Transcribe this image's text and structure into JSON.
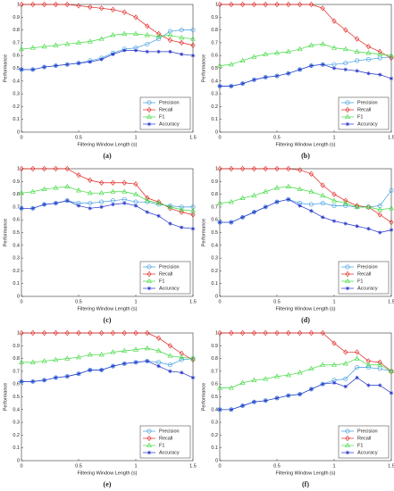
{
  "chart_data": [
    {
      "type": "line",
      "caption": "(a)",
      "xlabel": "Filtering Window Length (s)",
      "ylabel": "Performance",
      "x": [
        0,
        0.1,
        0.2,
        0.3,
        0.4,
        0.5,
        0.6,
        0.7,
        0.8,
        0.9,
        1,
        1.1,
        1.2,
        1.3,
        1.4,
        1.5
      ],
      "xlim": [
        0,
        1.5
      ],
      "ylim": [
        0,
        1
      ],
      "xticks": [
        0,
        0.5,
        1,
        1.5
      ],
      "yticks": [
        0,
        0.1,
        0.2,
        0.3,
        0.4,
        0.5,
        0.6,
        0.7,
        0.8,
        0.9,
        1
      ],
      "legend": "lower right",
      "series": [
        {
          "name": "Precision",
          "color": "#3d9be0",
          "marker": "circle",
          "values": [
            0.49,
            0.49,
            0.51,
            0.52,
            0.53,
            0.54,
            0.56,
            0.58,
            0.62,
            0.65,
            0.66,
            0.69,
            0.73,
            0.79,
            0.8,
            0.8
          ]
        },
        {
          "name": "Recall",
          "color": "#e0231f",
          "marker": "diamond",
          "values": [
            1,
            1,
            1,
            1,
            1,
            0.99,
            0.98,
            0.97,
            0.96,
            0.94,
            0.9,
            0.83,
            0.77,
            0.72,
            0.7,
            0.68
          ]
        },
        {
          "name": "F1",
          "color": "#3fd93f",
          "marker": "triangle",
          "values": [
            0.65,
            0.66,
            0.67,
            0.68,
            0.69,
            0.7,
            0.71,
            0.73,
            0.76,
            0.77,
            0.77,
            0.76,
            0.75,
            0.76,
            0.74,
            0.73
          ]
        },
        {
          "name": "Accuracy",
          "color": "#2233c8",
          "marker": "star",
          "values": [
            0.49,
            0.49,
            0.51,
            0.52,
            0.53,
            0.54,
            0.55,
            0.57,
            0.61,
            0.64,
            0.64,
            0.63,
            0.63,
            0.63,
            0.61,
            0.6
          ]
        }
      ]
    },
    {
      "type": "line",
      "caption": "(b)",
      "xlabel": "Filtering Window Length (s)",
      "ylabel": "Performance",
      "x": [
        0,
        0.1,
        0.2,
        0.3,
        0.4,
        0.5,
        0.6,
        0.7,
        0.8,
        0.9,
        1,
        1.1,
        1.2,
        1.3,
        1.4,
        1.5
      ],
      "xlim": [
        0,
        1.5
      ],
      "ylim": [
        0,
        1
      ],
      "xticks": [
        0,
        0.5,
        1,
        1.5
      ],
      "yticks": [
        0,
        0.1,
        0.2,
        0.3,
        0.4,
        0.5,
        0.6,
        0.7,
        0.8,
        0.9,
        1
      ],
      "legend": "lower right",
      "series": [
        {
          "name": "Precision",
          "color": "#3d9be0",
          "marker": "circle",
          "values": [
            0.36,
            0.36,
            0.38,
            0.41,
            0.43,
            0.44,
            0.46,
            0.49,
            0.52,
            0.53,
            0.53,
            0.54,
            0.56,
            0.57,
            0.58,
            0.59
          ]
        },
        {
          "name": "Recall",
          "color": "#e0231f",
          "marker": "diamond",
          "values": [
            1,
            1,
            1,
            1,
            1,
            1,
            1,
            1,
            1,
            0.97,
            0.87,
            0.8,
            0.73,
            0.67,
            0.63,
            0.58
          ]
        },
        {
          "name": "F1",
          "color": "#3fd93f",
          "marker": "triangle",
          "values": [
            0.52,
            0.53,
            0.56,
            0.59,
            0.61,
            0.62,
            0.63,
            0.65,
            0.68,
            0.69,
            0.66,
            0.65,
            0.63,
            0.62,
            0.61,
            0.6
          ]
        },
        {
          "name": "Accuracy",
          "color": "#2233c8",
          "marker": "star",
          "values": [
            0.36,
            0.36,
            0.38,
            0.41,
            0.43,
            0.44,
            0.46,
            0.49,
            0.52,
            0.53,
            0.5,
            0.49,
            0.48,
            0.46,
            0.45,
            0.42
          ]
        }
      ]
    },
    {
      "type": "line",
      "caption": "(c)",
      "xlabel": "Filtering Window Length (s)",
      "ylabel": "Performance",
      "x": [
        0,
        0.1,
        0.2,
        0.3,
        0.4,
        0.5,
        0.6,
        0.7,
        0.8,
        0.9,
        1,
        1.1,
        1.2,
        1.3,
        1.4,
        1.5
      ],
      "xlim": [
        0,
        1.5
      ],
      "ylim": [
        0,
        1
      ],
      "xticks": [
        0,
        0.5,
        1,
        1.5
      ],
      "yticks": [
        0,
        0.1,
        0.2,
        0.3,
        0.4,
        0.5,
        0.6,
        0.7,
        0.8,
        0.9,
        1
      ],
      "legend": "lower right",
      "series": [
        {
          "name": "Precision",
          "color": "#3d9be0",
          "marker": "circle",
          "values": [
            0.69,
            0.69,
            0.72,
            0.73,
            0.75,
            0.73,
            0.73,
            0.74,
            0.75,
            0.76,
            0.74,
            0.74,
            0.72,
            0.71,
            0.7,
            0.7
          ]
        },
        {
          "name": "Recall",
          "color": "#e0231f",
          "marker": "diamond",
          "values": [
            1,
            1,
            1,
            1,
            1,
            0.95,
            0.91,
            0.89,
            0.89,
            0.89,
            0.88,
            0.77,
            0.74,
            0.69,
            0.66,
            0.64
          ]
        },
        {
          "name": "F1",
          "color": "#3fd93f",
          "marker": "triangle",
          "values": [
            0.81,
            0.82,
            0.84,
            0.85,
            0.86,
            0.83,
            0.81,
            0.81,
            0.82,
            0.82,
            0.8,
            0.75,
            0.73,
            0.7,
            0.68,
            0.67
          ]
        },
        {
          "name": "Accuracy",
          "color": "#2233c8",
          "marker": "star",
          "values": [
            0.69,
            0.69,
            0.72,
            0.73,
            0.75,
            0.71,
            0.69,
            0.7,
            0.72,
            0.73,
            0.71,
            0.66,
            0.63,
            0.57,
            0.54,
            0.53
          ]
        }
      ]
    },
    {
      "type": "line",
      "caption": "(d)",
      "xlabel": "Filtering Window Length (s)",
      "ylabel": "Performance",
      "x": [
        0,
        0.1,
        0.2,
        0.3,
        0.4,
        0.5,
        0.6,
        0.7,
        0.8,
        0.9,
        1,
        1.1,
        1.2,
        1.3,
        1.4,
        1.5
      ],
      "xlim": [
        0,
        1.5
      ],
      "ylim": [
        0,
        1
      ],
      "xticks": [
        0,
        0.5,
        1,
        1.5
      ],
      "yticks": [
        0,
        0.1,
        0.2,
        0.3,
        0.4,
        0.5,
        0.6,
        0.7,
        0.8,
        0.9,
        1
      ],
      "legend": "lower right",
      "series": [
        {
          "name": "Precision",
          "color": "#3d9be0",
          "marker": "circle",
          "values": [
            0.58,
            0.58,
            0.62,
            0.66,
            0.7,
            0.74,
            0.76,
            0.73,
            0.72,
            0.73,
            0.71,
            0.71,
            0.7,
            0.7,
            0.71,
            0.83
          ]
        },
        {
          "name": "Recall",
          "color": "#e0231f",
          "marker": "diamond",
          "values": [
            1,
            1,
            1,
            1,
            1,
            1,
            1,
            0.99,
            0.96,
            0.87,
            0.8,
            0.75,
            0.71,
            0.7,
            0.64,
            0.58
          ]
        },
        {
          "name": "F1",
          "color": "#3fd93f",
          "marker": "triangle",
          "values": [
            0.73,
            0.74,
            0.77,
            0.79,
            0.82,
            0.85,
            0.86,
            0.84,
            0.82,
            0.79,
            0.75,
            0.73,
            0.7,
            0.7,
            0.68,
            0.69
          ]
        },
        {
          "name": "Accuracy",
          "color": "#2233c8",
          "marker": "star",
          "values": [
            0.58,
            0.58,
            0.62,
            0.66,
            0.7,
            0.74,
            0.76,
            0.71,
            0.67,
            0.62,
            0.59,
            0.57,
            0.55,
            0.53,
            0.5,
            0.52
          ]
        }
      ]
    },
    {
      "type": "line",
      "caption": "(e)",
      "xlabel": "Filtering Window Length (s)",
      "ylabel": "Performance",
      "x": [
        0,
        0.1,
        0.2,
        0.3,
        0.4,
        0.5,
        0.6,
        0.7,
        0.8,
        0.9,
        1,
        1.1,
        1.2,
        1.3,
        1.4,
        1.5
      ],
      "xlim": [
        0,
        1.5
      ],
      "ylim": [
        0,
        1
      ],
      "xticks": [
        0,
        0.5,
        1,
        1.5
      ],
      "yticks": [
        0,
        0.1,
        0.2,
        0.3,
        0.4,
        0.5,
        0.6,
        0.7,
        0.8,
        0.9,
        1
      ],
      "legend": "lower right",
      "series": [
        {
          "name": "Precision",
          "color": "#3d9be0",
          "marker": "circle",
          "values": [
            0.62,
            0.62,
            0.63,
            0.65,
            0.66,
            0.68,
            0.71,
            0.71,
            0.74,
            0.76,
            0.77,
            0.78,
            0.77,
            0.75,
            0.79,
            0.8
          ]
        },
        {
          "name": "Recall",
          "color": "#e0231f",
          "marker": "diamond",
          "values": [
            1,
            1,
            1,
            1,
            1,
            1,
            1,
            1,
            1,
            1,
            1,
            1,
            0.96,
            0.9,
            0.84,
            0.79
          ]
        },
        {
          "name": "F1",
          "color": "#3fd93f",
          "marker": "triangle",
          "values": [
            0.77,
            0.77,
            0.78,
            0.79,
            0.8,
            0.81,
            0.83,
            0.83,
            0.85,
            0.86,
            0.87,
            0.88,
            0.86,
            0.82,
            0.81,
            0.8
          ]
        },
        {
          "name": "Accuracy",
          "color": "#2233c8",
          "marker": "star",
          "values": [
            0.62,
            0.62,
            0.63,
            0.65,
            0.66,
            0.68,
            0.71,
            0.71,
            0.74,
            0.76,
            0.77,
            0.78,
            0.74,
            0.7,
            0.69,
            0.65
          ]
        }
      ]
    },
    {
      "type": "line",
      "caption": "(f)",
      "xlabel": "Filtering Window Length (s)",
      "ylabel": "Performance",
      "x": [
        0,
        0.1,
        0.2,
        0.3,
        0.4,
        0.5,
        0.6,
        0.7,
        0.8,
        0.9,
        1,
        1.1,
        1.2,
        1.3,
        1.4,
        1.5
      ],
      "xlim": [
        0,
        1.5
      ],
      "ylim": [
        0,
        1
      ],
      "xticks": [
        0,
        0.5,
        1,
        1.5
      ],
      "yticks": [
        0,
        0.1,
        0.2,
        0.3,
        0.4,
        0.5,
        0.6,
        0.7,
        0.8,
        0.9,
        1
      ],
      "legend": "lower right",
      "series": [
        {
          "name": "Precision",
          "color": "#3d9be0",
          "marker": "circle",
          "values": [
            0.4,
            0.4,
            0.43,
            0.46,
            0.47,
            0.49,
            0.51,
            0.52,
            0.56,
            0.6,
            0.63,
            0.64,
            0.73,
            0.73,
            0.72,
            0.7
          ]
        },
        {
          "name": "Recall",
          "color": "#e0231f",
          "marker": "diamond",
          "values": [
            1,
            1,
            1,
            1,
            1,
            1,
            1,
            1,
            1,
            1,
            0.92,
            0.85,
            0.85,
            0.78,
            0.77,
            0.7
          ]
        },
        {
          "name": "F1",
          "color": "#3fd93f",
          "marker": "triangle",
          "values": [
            0.57,
            0.57,
            0.61,
            0.63,
            0.64,
            0.66,
            0.67,
            0.69,
            0.72,
            0.75,
            0.75,
            0.76,
            0.8,
            0.75,
            0.75,
            0.7
          ]
        },
        {
          "name": "Accuracy",
          "color": "#2233c8",
          "marker": "star",
          "values": [
            0.4,
            0.4,
            0.43,
            0.46,
            0.47,
            0.49,
            0.51,
            0.52,
            0.56,
            0.6,
            0.61,
            0.58,
            0.65,
            0.59,
            0.59,
            0.53
          ]
        }
      ]
    }
  ]
}
